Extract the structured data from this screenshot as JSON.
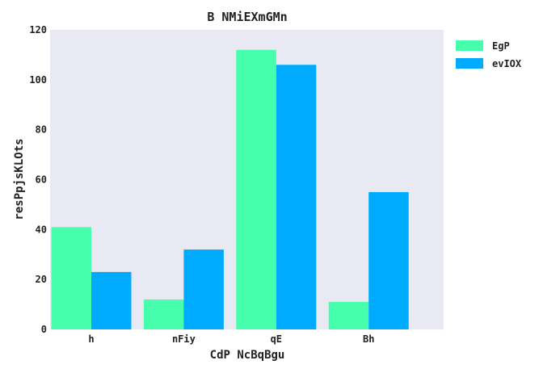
{
  "chart_data": {
    "type": "bar",
    "title": "B NMiEXmGMn",
    "xlabel": "CdP NcBqBgu",
    "ylabel": "resPpjsKLOts",
    "categories": [
      "h",
      "nFiy",
      "qE",
      "Bh"
    ],
    "series": [
      {
        "name": "EgP",
        "values": [
          41,
          12,
          112,
          11
        ],
        "color": "#46FFAC"
      },
      {
        "name": "evIOX",
        "values": [
          23,
          32,
          106,
          55
        ],
        "color": "#00ABFF"
      }
    ],
    "ylim": [
      0,
      120
    ],
    "yticks": [
      0,
      20,
      40,
      60,
      80,
      100,
      120
    ],
    "grid": false,
    "legend_position": "right",
    "plot_background": "#E8E9F2"
  }
}
